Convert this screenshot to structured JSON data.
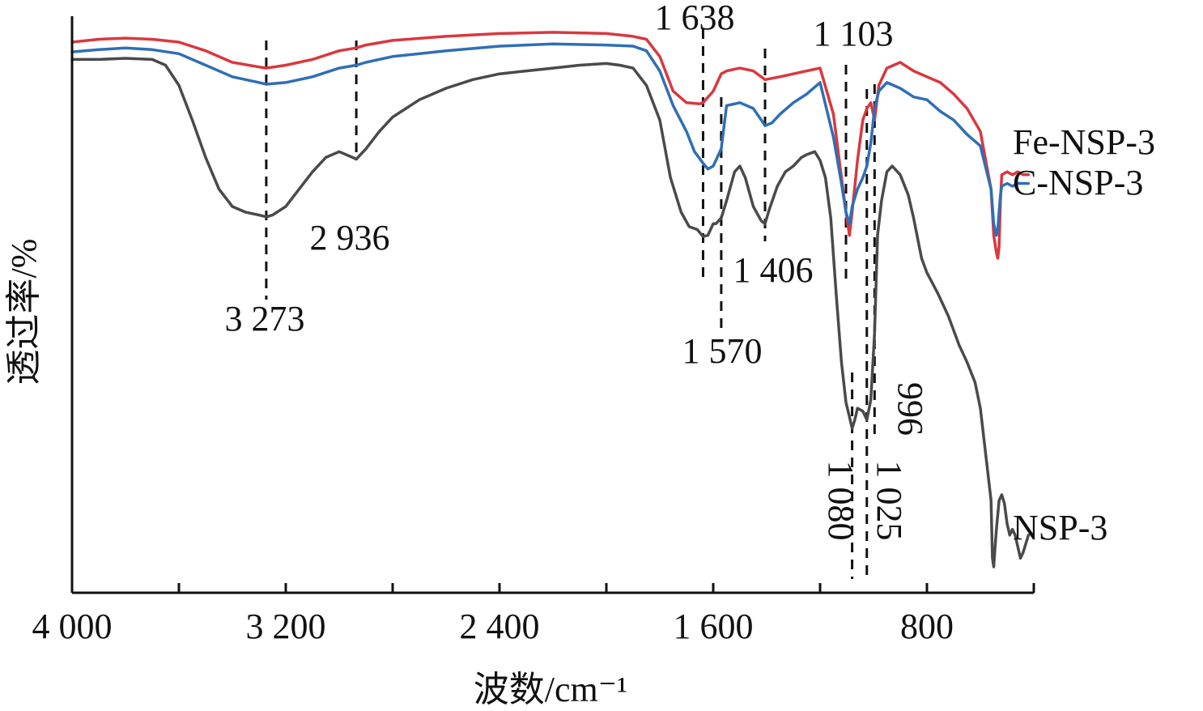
{
  "chart_data": {
    "type": "line",
    "xlabel": "波数/cm⁻¹",
    "ylabel": "透过率/%",
    "xlim": [
      4000,
      400
    ],
    "ylim": [
      0,
      100
    ],
    "x_ticks": [
      4000,
      3600,
      3200,
      2800,
      2400,
      2000,
      1600,
      1200,
      800,
      400
    ],
    "x_tick_labels": [
      "4 000",
      "",
      "3 200",
      "",
      "2 400",
      "",
      "1 600",
      "",
      "800",
      ""
    ],
    "legend": "right-inline",
    "grid": false,
    "series": [
      {
        "name": "Fe-NSP-3",
        "color": "#d9383f",
        "x": [
          4000,
          3900,
          3800,
          3700,
          3600,
          3500,
          3400,
          3300,
          3273,
          3200,
          3100,
          3000,
          2936,
          2900,
          2800,
          2600,
          2400,
          2200,
          2000,
          1900,
          1850,
          1800,
          1750,
          1700,
          1650,
          1638,
          1600,
          1570,
          1550,
          1500,
          1450,
          1406,
          1350,
          1300,
          1250,
          1200,
          1150,
          1120,
          1103,
          1090,
          1080,
          1060,
          1040,
          1025,
          1010,
          996,
          980,
          950,
          900,
          850,
          800,
          750,
          700,
          650,
          600,
          560,
          550,
          540,
          535,
          530,
          525,
          520,
          500,
          480,
          460,
          440,
          420
        ],
        "y": [
          95.5,
          96.0,
          96.2,
          96.0,
          95.5,
          94.0,
          92.0,
          91.2,
          91.0,
          91.5,
          92.5,
          94.0,
          94.5,
          95.0,
          95.8,
          96.5,
          97.0,
          97.2,
          97.0,
          96.5,
          96.0,
          93.0,
          87.0,
          85.0,
          84.8,
          85.0,
          87.0,
          90.0,
          90.5,
          91.0,
          90.5,
          89.0,
          89.5,
          90.0,
          90.5,
          91.0,
          83.0,
          72.0,
          66.0,
          62.0,
          66.0,
          75.0,
          82.0,
          84.0,
          85.0,
          82.0,
          88.0,
          91.0,
          92.0,
          90.5,
          89.5,
          88.5,
          86.5,
          84.0,
          80.0,
          70.0,
          62.0,
          59.0,
          58.0,
          60.0,
          68.0,
          72.5,
          73.0,
          72.5,
          73.0,
          72.5,
          72.5
        ]
      },
      {
        "name": "C-NSP-3",
        "color": "#2f6fb5",
        "x": [
          4000,
          3900,
          3800,
          3700,
          3600,
          3500,
          3400,
          3300,
          3273,
          3200,
          3100,
          3000,
          2936,
          2900,
          2800,
          2600,
          2400,
          2200,
          2000,
          1900,
          1850,
          1800,
          1750,
          1700,
          1670,
          1638,
          1620,
          1600,
          1570,
          1550,
          1500,
          1450,
          1420,
          1406,
          1380,
          1350,
          1300,
          1250,
          1200,
          1150,
          1120,
          1103,
          1090,
          1080,
          1060,
          1040,
          1025,
          1010,
          996,
          980,
          950,
          900,
          850,
          800,
          750,
          700,
          650,
          600,
          560,
          550,
          540,
          535,
          530,
          525,
          520,
          500,
          480,
          460,
          440,
          420
        ],
        "y": [
          93.8,
          94.2,
          94.5,
          94.2,
          93.5,
          91.5,
          89.5,
          88.5,
          88.2,
          88.5,
          89.5,
          91.0,
          91.5,
          92.0,
          93.0,
          94.0,
          94.8,
          95.2,
          95.0,
          94.8,
          94.0,
          90.5,
          84.5,
          80.0,
          76.5,
          74.5,
          73.5,
          74.0,
          77.0,
          84.5,
          85.0,
          84.0,
          82.0,
          81.0,
          81.5,
          83.0,
          85.0,
          86.5,
          88.5,
          79.0,
          71.0,
          66.0,
          64.0,
          67.0,
          70.0,
          72.0,
          74.0,
          78.0,
          84.0,
          87.0,
          88.5,
          87.5,
          86.0,
          85.5,
          83.5,
          82.0,
          79.5,
          77.5,
          70.0,
          64.0,
          62.0,
          63.0,
          66.0,
          69.0,
          70.5,
          71.0,
          70.5,
          71.0,
          71.0,
          71.0
        ]
      },
      {
        "name": "NSP-3",
        "color": "#4a4a4a",
        "x": [
          4000,
          3900,
          3800,
          3700,
          3650,
          3600,
          3550,
          3500,
          3450,
          3400,
          3350,
          3300,
          3273,
          3250,
          3200,
          3150,
          3100,
          3050,
          3000,
          2950,
          2936,
          2900,
          2850,
          2800,
          2700,
          2600,
          2500,
          2400,
          2300,
          2200,
          2100,
          2000,
          1950,
          1900,
          1850,
          1800,
          1760,
          1720,
          1690,
          1660,
          1638,
          1620,
          1600,
          1590,
          1580,
          1570,
          1550,
          1520,
          1500,
          1480,
          1450,
          1420,
          1406,
          1390,
          1360,
          1330,
          1300,
          1270,
          1250,
          1220,
          1200,
          1180,
          1160,
          1140,
          1120,
          1103,
          1090,
          1080,
          1070,
          1060,
          1040,
          1025,
          1010,
          996,
          985,
          970,
          950,
          930,
          900,
          870,
          850,
          820,
          800,
          760,
          720,
          680,
          650,
          620,
          600,
          580,
          560,
          555,
          550,
          545,
          540,
          530,
          520,
          510,
          500,
          490,
          480,
          470,
          460,
          450,
          440,
          430,
          420
        ],
        "y": [
          92.5,
          92.5,
          92.7,
          92.5,
          91.5,
          88.0,
          82.0,
          75.5,
          70.0,
          67.0,
          66.0,
          65.5,
          65.2,
          65.5,
          67.0,
          70.0,
          73.0,
          75.5,
          76.5,
          75.5,
          75.2,
          77.0,
          80.0,
          82.5,
          85.5,
          87.5,
          89.0,
          90.0,
          90.5,
          91.0,
          91.5,
          91.8,
          91.5,
          91.0,
          88.0,
          82.0,
          72.0,
          66.0,
          63.5,
          63.0,
          61.8,
          62.0,
          64.0,
          64.0,
          64.5,
          65.0,
          68.0,
          73.0,
          74.0,
          72.0,
          67.0,
          64.5,
          64.0,
          66.5,
          70.5,
          73.0,
          74.0,
          75.5,
          76.0,
          76.5,
          75.0,
          72.0,
          65.0,
          52.0,
          40.0,
          33.0,
          30.5,
          28.5,
          30.0,
          32.0,
          31.5,
          30.0,
          33.5,
          45.0,
          62.0,
          68.0,
          73.0,
          74.0,
          72.5,
          69.0,
          65.0,
          58.0,
          55.5,
          52.0,
          48.0,
          43.0,
          40.0,
          36.5,
          32.0,
          24.0,
          16.0,
          6.0,
          4.5,
          8.0,
          11.0,
          16.0,
          17.0,
          15.5,
          12.0,
          10.0,
          11.0,
          10.0,
          8.0,
          6.0,
          7.0,
          8.5,
          10.0
        ]
      }
    ],
    "annotations": [
      {
        "label": "3 273",
        "x": 3273
      },
      {
        "label": "2 936",
        "x": 2936
      },
      {
        "label": "1 638",
        "x": 1638
      },
      {
        "label": "1 570",
        "x": 1570
      },
      {
        "label": "1 406",
        "x": 1406
      },
      {
        "label": "1 103",
        "x": 1103
      },
      {
        "label": "1 080",
        "x": 1080
      },
      {
        "label": "1 025",
        "x": 1025
      },
      {
        "label": "996",
        "x": 996
      }
    ]
  }
}
